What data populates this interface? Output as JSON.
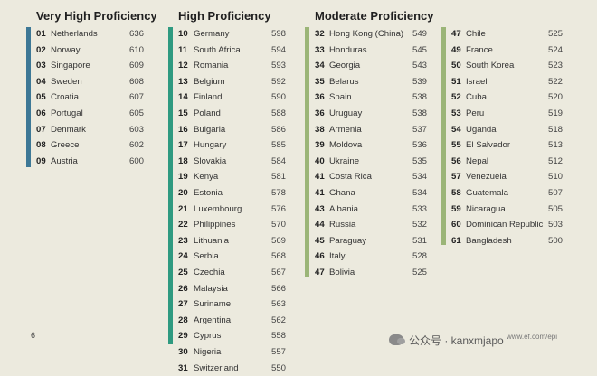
{
  "page_number": "6",
  "watermark": "公众号 · kanxmjapo",
  "url": "www.ef.com/epi",
  "colors": {
    "very_high": "#3d7896",
    "high": "#2f9a80",
    "moderate": "#9bb577"
  },
  "sections": [
    {
      "title": "Very High Proficiency",
      "rows": [
        {
          "rank": "01",
          "country": "Netherlands",
          "score": "636"
        },
        {
          "rank": "02",
          "country": "Norway",
          "score": "610"
        },
        {
          "rank": "03",
          "country": "Singapore",
          "score": "609"
        },
        {
          "rank": "04",
          "country": "Sweden",
          "score": "608"
        },
        {
          "rank": "05",
          "country": "Croatia",
          "score": "607"
        },
        {
          "rank": "06",
          "country": "Portugal",
          "score": "605"
        },
        {
          "rank": "07",
          "country": "Denmark",
          "score": "603"
        },
        {
          "rank": "08",
          "country": "Greece",
          "score": "602"
        },
        {
          "rank": "09",
          "country": "Austria",
          "score": "600"
        }
      ]
    },
    {
      "title": "High Proficiency",
      "rows": [
        {
          "rank": "10",
          "country": "Germany",
          "score": "598"
        },
        {
          "rank": "11",
          "country": "South Africa",
          "score": "594"
        },
        {
          "rank": "12",
          "country": "Romania",
          "score": "593"
        },
        {
          "rank": "13",
          "country": "Belgium",
          "score": "592"
        },
        {
          "rank": "14",
          "country": "Finland",
          "score": "590"
        },
        {
          "rank": "15",
          "country": "Poland",
          "score": "588"
        },
        {
          "rank": "16",
          "country": "Bulgaria",
          "score": "586"
        },
        {
          "rank": "17",
          "country": "Hungary",
          "score": "585"
        },
        {
          "rank": "18",
          "country": "Slovakia",
          "score": "584"
        },
        {
          "rank": "19",
          "country": "Kenya",
          "score": "581"
        },
        {
          "rank": "20",
          "country": "Estonia",
          "score": "578"
        },
        {
          "rank": "21",
          "country": "Luxembourg",
          "score": "576"
        },
        {
          "rank": "22",
          "country": "Philippines",
          "score": "570"
        },
        {
          "rank": "23",
          "country": "Lithuania",
          "score": "569"
        },
        {
          "rank": "24",
          "country": "Serbia",
          "score": "568"
        },
        {
          "rank": "25",
          "country": "Czechia",
          "score": "567"
        },
        {
          "rank": "26",
          "country": "Malaysia",
          "score": "566"
        },
        {
          "rank": "27",
          "country": "Suriname",
          "score": "563"
        },
        {
          "rank": "28",
          "country": "Argentina",
          "score": "562"
        },
        {
          "rank": "29",
          "country": "Cyprus",
          "score": "558"
        },
        {
          "rank": "30",
          "country": "Nigeria",
          "score": "557"
        },
        {
          "rank": "31",
          "country": "Switzerland",
          "score": "550"
        }
      ]
    },
    {
      "title": "Moderate Proficiency",
      "rows": [
        {
          "rank": "32",
          "country": "Hong Kong (China)",
          "score": "549"
        },
        {
          "rank": "33",
          "country": "Honduras",
          "score": "545"
        },
        {
          "rank": "34",
          "country": "Georgia",
          "score": "543"
        },
        {
          "rank": "35",
          "country": "Belarus",
          "score": "539"
        },
        {
          "rank": "36",
          "country": "Spain",
          "score": "538"
        },
        {
          "rank": "36",
          "country": "Uruguay",
          "score": "538"
        },
        {
          "rank": "38",
          "country": "Armenia",
          "score": "537"
        },
        {
          "rank": "39",
          "country": "Moldova",
          "score": "536"
        },
        {
          "rank": "40",
          "country": "Ukraine",
          "score": "535"
        },
        {
          "rank": "41",
          "country": "Costa Rica",
          "score": "534"
        },
        {
          "rank": "41",
          "country": "Ghana",
          "score": "534"
        },
        {
          "rank": "43",
          "country": "Albania",
          "score": "533"
        },
        {
          "rank": "44",
          "country": "Russia",
          "score": "532"
        },
        {
          "rank": "45",
          "country": "Paraguay",
          "score": "531"
        },
        {
          "rank": "46",
          "country": "Italy",
          "score": "528"
        },
        {
          "rank": "47",
          "country": "Bolivia",
          "score": "525"
        }
      ]
    },
    {
      "title": "",
      "rows": [
        {
          "rank": "47",
          "country": "Chile",
          "score": "525"
        },
        {
          "rank": "49",
          "country": "France",
          "score": "524"
        },
        {
          "rank": "50",
          "country": "South Korea",
          "score": "523"
        },
        {
          "rank": "51",
          "country": "Israel",
          "score": "522"
        },
        {
          "rank": "52",
          "country": "Cuba",
          "score": "520"
        },
        {
          "rank": "53",
          "country": "Peru",
          "score": "519"
        },
        {
          "rank": "54",
          "country": "Uganda",
          "score": "518"
        },
        {
          "rank": "55",
          "country": "El Salvador",
          "score": "513"
        },
        {
          "rank": "56",
          "country": "Nepal",
          "score": "512"
        },
        {
          "rank": "57",
          "country": "Venezuela",
          "score": "510"
        },
        {
          "rank": "58",
          "country": "Guatemala",
          "score": "507"
        },
        {
          "rank": "59",
          "country": "Nicaragua",
          "score": "505"
        },
        {
          "rank": "60",
          "country": "Dominican Republic",
          "score": "503"
        },
        {
          "rank": "61",
          "country": "Bangladesh",
          "score": "500"
        }
      ]
    }
  ]
}
